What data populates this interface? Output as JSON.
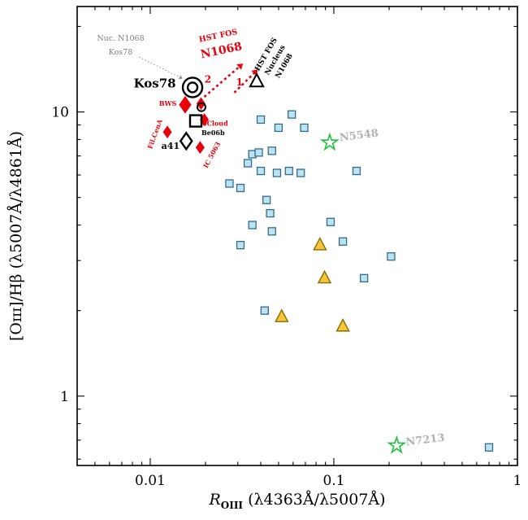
{
  "figure": {
    "background": "#ffffff"
  },
  "chart_data": {
    "type": "scatter",
    "title": "",
    "xlabel": {
      "main": "R",
      "sub": "OIII",
      "rest": "   (λ4363Å/λ5007Å)"
    },
    "ylabel": "[Oɪɪɪ]/Hβ  (λ5007Å/λ4861Å)",
    "xscale": "log",
    "yscale": "log",
    "xlim": [
      0.004,
      1.0
    ],
    "ylim": [
      0.57,
      23.5
    ],
    "grid": false,
    "legend": "none",
    "xticks": [
      {
        "value": 0.01,
        "label": "0.01"
      },
      {
        "value": 0.1,
        "label": "0.1"
      },
      {
        "value": 1,
        "label": "1"
      }
    ],
    "yticks": [
      {
        "value": 1,
        "label": "1"
      },
      {
        "value": 10,
        "label": "10"
      }
    ],
    "series": [
      {
        "name": "comparison-squares",
        "marker": "square",
        "fill": "#bfe2f0",
        "edge": "#2f6d8c",
        "size": 9,
        "lw": 1.3,
        "points": [
          [
            0.04,
            9.4
          ],
          [
            0.05,
            8.8
          ],
          [
            0.059,
            9.8
          ],
          [
            0.069,
            8.8
          ],
          [
            0.034,
            6.6
          ],
          [
            0.036,
            7.1
          ],
          [
            0.039,
            7.2
          ],
          [
            0.046,
            7.3
          ],
          [
            0.027,
            5.6
          ],
          [
            0.031,
            5.4
          ],
          [
            0.04,
            6.2
          ],
          [
            0.049,
            6.1
          ],
          [
            0.057,
            6.2
          ],
          [
            0.066,
            6.1
          ],
          [
            0.133,
            6.2
          ],
          [
            0.036,
            4.0
          ],
          [
            0.043,
            4.9
          ],
          [
            0.045,
            4.4
          ],
          [
            0.046,
            3.8
          ],
          [
            0.031,
            3.4
          ],
          [
            0.096,
            4.1
          ],
          [
            0.112,
            3.5
          ],
          [
            0.205,
            3.1
          ],
          [
            0.146,
            2.6
          ],
          [
            0.042,
            2.0
          ],
          [
            0.7,
            0.66
          ]
        ]
      },
      {
        "name": "yellow-triangles",
        "marker": "triangle",
        "fill": "#f4c63c",
        "edge": "#8a6a00",
        "size": 13,
        "lw": 1.4,
        "points": [
          [
            0.084,
            3.4
          ],
          [
            0.089,
            2.6
          ],
          [
            0.052,
            1.9
          ],
          [
            0.112,
            1.76
          ]
        ]
      },
      {
        "name": "green-stars",
        "marker": "star",
        "fill": "#ffffff",
        "edge": "#1dbf3c",
        "size": 10,
        "lw": 1.6,
        "points": [
          [
            0.095,
            7.8
          ],
          [
            0.22,
            0.67
          ]
        ]
      },
      {
        "name": "red-diamond-large",
        "marker": "diamond",
        "fill": "#e8000b",
        "edge": "#e8000b",
        "size": 10,
        "lw": 1,
        "points": [
          [
            0.0155,
            10.6
          ]
        ]
      },
      {
        "name": "red-diamonds",
        "marker": "diamond",
        "fill": "#e8000b",
        "edge": "#e8000b",
        "size": 7,
        "lw": 1,
        "points": [
          [
            0.0189,
            10.7
          ],
          [
            0.0197,
            9.4
          ],
          [
            0.0124,
            8.5
          ],
          [
            0.0187,
            7.5
          ]
        ]
      },
      {
        "name": "kos78-double-circle",
        "marker": "circle2",
        "fill": "none",
        "edge": "#000000",
        "size": 12,
        "lw": 2.4,
        "points": [
          [
            0.017,
            12.2
          ]
        ]
      },
      {
        "name": "small-open-circle",
        "marker": "circle",
        "fill": "none",
        "edge": "#000000",
        "size": 5,
        "lw": 2,
        "points": [
          [
            0.019,
            10.4
          ]
        ]
      },
      {
        "name": "open-square-be06b",
        "marker": "square",
        "fill": "none",
        "edge": "#000000",
        "size": 14,
        "lw": 2.4,
        "points": [
          [
            0.0177,
            9.3
          ]
        ]
      },
      {
        "name": "open-diamond-a41",
        "marker": "diamond",
        "fill": "none",
        "edge": "#000000",
        "size": 10,
        "lw": 2.4,
        "points": [
          [
            0.0157,
            7.9
          ]
        ]
      },
      {
        "name": "open-triangle-n1068",
        "marker": "triangle",
        "fill": "#ffffff",
        "edge": "#000000",
        "size": 14,
        "lw": 2,
        "points": [
          [
            0.038,
            12.8
          ]
        ]
      }
    ],
    "arrows": [
      {
        "name": "red-arrow-2",
        "x1": 0.0197,
        "y1": 11.3,
        "x2": 0.032,
        "y2": 14.8,
        "color": "#e8000b",
        "width": 2.6,
        "dash": "3 3.5",
        "head": 8
      },
      {
        "name": "red-arrow-1",
        "x1": 0.0287,
        "y1": 11.7,
        "x2": 0.0385,
        "y2": 14.1,
        "color": "#e8000b",
        "width": 2.6,
        "dash": "3 3.5",
        "head": 8
      },
      {
        "name": "gray-arrow-kos78",
        "x1": 0.0087,
        "y1": 15.6,
        "x2": 0.015,
        "y2": 13.1,
        "color": "#909090",
        "width": 1,
        "dash": "1.5 2.5",
        "head": 5
      }
    ],
    "annotations": [
      {
        "text": "Nuc. N1068",
        "x": 0.0069,
        "y": 17.8,
        "color": "#808080",
        "size": 9.5
      },
      {
        "text": "Kos78",
        "x": 0.0069,
        "y": 15.9,
        "color": "#808080",
        "size": 9.5
      },
      {
        "text": "HST FOS",
        "x": 0.0236,
        "y": 18.2,
        "color": "#e8000b",
        "size": 9.5,
        "weight": "bold",
        "rotation": -12
      },
      {
        "text": "N1068",
        "x": 0.0246,
        "y": 16.0,
        "color": "#e8000b",
        "size": 14,
        "weight": "bold",
        "rotation": -12
      },
      {
        "text": "HST FOS",
        "x": 0.0438,
        "y": 15.8,
        "color": "#000000",
        "size": 9,
        "weight": "bold",
        "rotation": -60
      },
      {
        "text": "Nucleus",
        "x": 0.049,
        "y": 15.1,
        "color": "#000000",
        "size": 9,
        "weight": "bold",
        "rotation": -60
      },
      {
        "text": "N1068",
        "x": 0.0548,
        "y": 14.4,
        "color": "#000000",
        "size": 9,
        "weight": "bold",
        "rotation": -60
      },
      {
        "text": "Kos78",
        "x": 0.0138,
        "y": 12.2,
        "color": "#000000",
        "size": 15,
        "weight": "bold",
        "anchor": "end"
      },
      {
        "text": "BWS",
        "x": 0.0139,
        "y": 10.5,
        "color": "#e8000b",
        "size": 8,
        "weight": "bold",
        "anchor": "end"
      },
      {
        "text": "0Cloud",
        "x": 0.0192,
        "y": 8.95,
        "color": "#e8000b",
        "size": 8,
        "weight": "bold",
        "anchor": "start"
      },
      {
        "text": "Be06b",
        "x": 0.019,
        "y": 8.3,
        "color": "#000000",
        "size": 8,
        "weight": "bold",
        "anchor": "start"
      },
      {
        "text": "Fil.CenA",
        "x": 0.0109,
        "y": 8.3,
        "color": "#e8000b",
        "size": 8,
        "weight": "bold",
        "rotation": -70
      },
      {
        "text": "IC 5063",
        "x": 0.0222,
        "y": 7.0,
        "color": "#e8000b",
        "size": 8,
        "weight": "bold",
        "rotation": -62
      },
      {
        "text": "a41",
        "x": 0.0129,
        "y": 7.4,
        "color": "#000000",
        "size": 11,
        "weight": "bold"
      },
      {
        "text": "N5548",
        "x": 0.108,
        "y": 7.9,
        "color": "#b3b3b3",
        "size": 13,
        "weight": "bold",
        "anchor": "start",
        "rotation": -7
      },
      {
        "text": "N7213",
        "x": 0.248,
        "y": 0.67,
        "color": "#b3b3b3",
        "size": 13,
        "weight": "bold",
        "anchor": "start",
        "rotation": -7
      },
      {
        "text": "2",
        "x": 0.0206,
        "y": 12.7,
        "color": "#e8000b",
        "size": 12,
        "weight": "bold"
      },
      {
        "text": "1",
        "x": 0.0306,
        "y": 12.4,
        "color": "#e8000b",
        "size": 12,
        "weight": "bold"
      }
    ]
  }
}
